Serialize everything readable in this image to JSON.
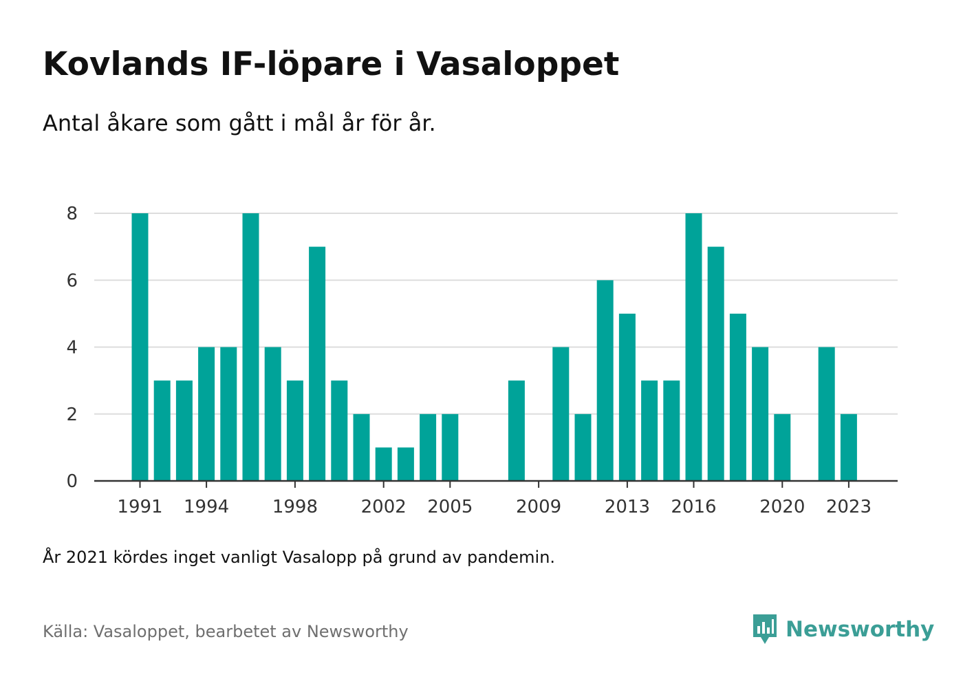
{
  "header": {
    "title": "Kovlands IF-löpare i Vasaloppet",
    "subtitle": "Antal åkare som gått i mål år för år."
  },
  "footer": {
    "note": "År 2021 kördes inget vanligt Vasalopp på grund av pandemin.",
    "source": "Källa: Vasaloppet, bearbetet av Newsworthy",
    "brand": "Newsworthy"
  },
  "colors": {
    "bar": "#00a399",
    "grid": "#dddddd",
    "axis": "#333333",
    "brand": "#3b9e96"
  },
  "chart_data": {
    "type": "bar",
    "title": "Kovlands IF-löpare i Vasaloppet",
    "subtitle": "Antal åkare som gått i mål år för år.",
    "xlabel": "",
    "ylabel": "",
    "ylim": [
      0,
      8
    ],
    "yticks": [
      0,
      2,
      4,
      6,
      8
    ],
    "xticks": [
      1991,
      1994,
      1998,
      2002,
      2005,
      2009,
      2013,
      2016,
      2020,
      2023
    ],
    "x_range": [
      1991,
      2023
    ],
    "grid": true,
    "legend": "none",
    "categories": [
      1991,
      1992,
      1993,
      1994,
      1995,
      1996,
      1997,
      1998,
      1999,
      2000,
      2001,
      2002,
      2003,
      2004,
      2005,
      2006,
      2007,
      2008,
      2009,
      2010,
      2011,
      2012,
      2013,
      2014,
      2015,
      2016,
      2017,
      2018,
      2019,
      2020,
      2021,
      2022,
      2023
    ],
    "values": [
      8,
      3,
      3,
      4,
      4,
      8,
      4,
      3,
      7,
      3,
      2,
      1,
      1,
      2,
      2,
      0,
      0,
      3,
      0,
      4,
      2,
      6,
      5,
      3,
      3,
      8,
      7,
      5,
      4,
      2,
      0,
      4,
      2
    ]
  }
}
